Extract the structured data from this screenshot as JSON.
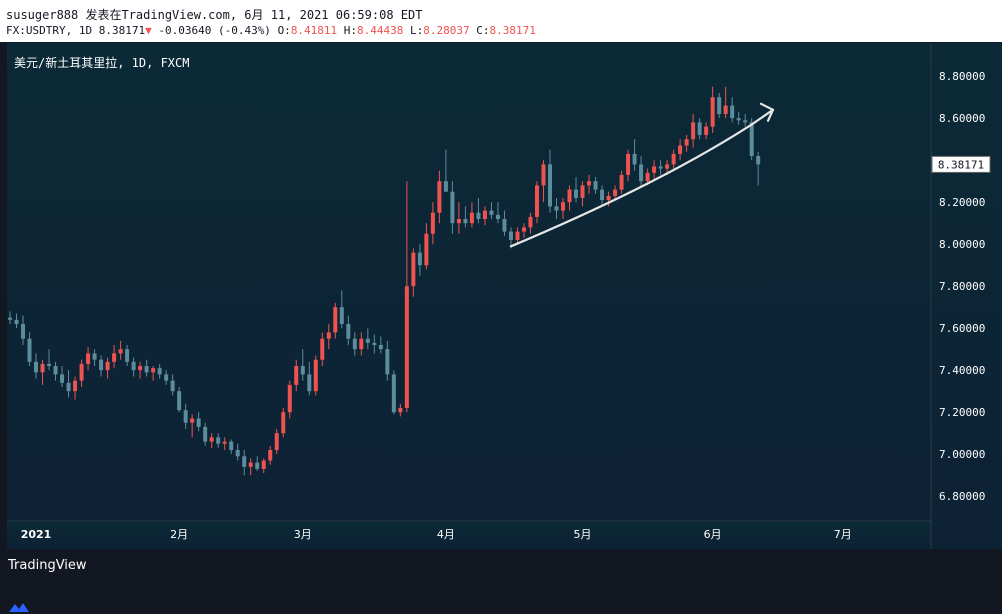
{
  "header": {
    "author_line": "susuger888 发表在TradingView.com, 6月 11, 2021 06:59:08 EDT",
    "symbol": "FX:USDTRY",
    "interval": "1D",
    "last": "8.38171",
    "change_arrow": "▼",
    "change": "-0.03640",
    "change_pct": "(-0.43%)",
    "o_label": "O:",
    "o_value": "8.41811",
    "h_label": "H:",
    "h_value": "8.44438",
    "l_label": "L:",
    "l_value": "8.28037",
    "c_label": "C:",
    "c_value": "8.38171"
  },
  "chart_data": {
    "type": "candlestick",
    "title": "美元/新土耳其里拉, 1D, FXCM",
    "x_tick_labels": [
      "2021",
      "2月",
      "3月",
      "4月",
      "5月",
      "6月",
      "7月"
    ],
    "y_ticks": [
      6.8,
      7.0,
      7.2,
      7.4,
      7.6,
      7.8,
      8.0,
      8.2,
      8.4,
      8.6,
      8.8
    ],
    "ylim": [
      6.72,
      8.92
    ],
    "price_label": "8.38171",
    "annotation": "upward trend arrow drawn under the April–June rise",
    "colors": {
      "background_top": "#0b2936",
      "background_bottom": "#0d2235",
      "up": "#ef5350",
      "down": "#5d8d9c",
      "arrow": "#e6e6e6",
      "axis_text": "#ffffff"
    },
    "candles": [
      [
        7.65,
        7.68,
        7.62,
        7.64
      ],
      [
        7.64,
        7.67,
        7.6,
        7.62
      ],
      [
        7.62,
        7.66,
        7.52,
        7.55
      ],
      [
        7.55,
        7.58,
        7.42,
        7.44
      ],
      [
        7.44,
        7.48,
        7.36,
        7.39
      ],
      [
        7.39,
        7.45,
        7.33,
        7.43
      ],
      [
        7.43,
        7.5,
        7.4,
        7.42
      ],
      [
        7.42,
        7.44,
        7.35,
        7.38
      ],
      [
        7.38,
        7.42,
        7.32,
        7.34
      ],
      [
        7.34,
        7.4,
        7.27,
        7.3
      ],
      [
        7.3,
        7.37,
        7.26,
        7.35
      ],
      [
        7.35,
        7.45,
        7.32,
        7.43
      ],
      [
        7.43,
        7.51,
        7.4,
        7.48
      ],
      [
        7.48,
        7.5,
        7.42,
        7.45
      ],
      [
        7.45,
        7.47,
        7.37,
        7.4
      ],
      [
        7.4,
        7.46,
        7.36,
        7.44
      ],
      [
        7.44,
        7.52,
        7.41,
        7.48
      ],
      [
        7.48,
        7.54,
        7.45,
        7.5
      ],
      [
        7.5,
        7.52,
        7.42,
        7.44
      ],
      [
        7.44,
        7.46,
        7.37,
        7.4
      ],
      [
        7.4,
        7.44,
        7.36,
        7.42
      ],
      [
        7.42,
        7.45,
        7.37,
        7.39
      ],
      [
        7.39,
        7.42,
        7.35,
        7.41
      ],
      [
        7.41,
        7.43,
        7.36,
        7.38
      ],
      [
        7.38,
        7.4,
        7.33,
        7.35
      ],
      [
        7.35,
        7.38,
        7.28,
        7.3
      ],
      [
        7.3,
        7.32,
        7.2,
        7.21
      ],
      [
        7.21,
        7.24,
        7.12,
        7.15
      ],
      [
        7.15,
        7.19,
        7.08,
        7.17
      ],
      [
        7.17,
        7.2,
        7.11,
        7.13
      ],
      [
        7.13,
        7.15,
        7.04,
        7.06
      ],
      [
        7.06,
        7.1,
        7.03,
        7.08
      ],
      [
        7.08,
        7.1,
        7.03,
        7.05
      ],
      [
        7.05,
        7.08,
        7.02,
        7.06
      ],
      [
        7.06,
        7.07,
        7.0,
        7.02
      ],
      [
        7.02,
        7.05,
        6.97,
        6.99
      ],
      [
        6.99,
        7.02,
        6.9,
        6.94
      ],
      [
        6.94,
        6.98,
        6.9,
        6.96
      ],
      [
        6.96,
        6.99,
        6.92,
        6.93
      ],
      [
        6.93,
        6.98,
        6.91,
        6.97
      ],
      [
        6.97,
        7.04,
        6.95,
        7.02
      ],
      [
        7.02,
        7.12,
        7.0,
        7.1
      ],
      [
        7.1,
        7.22,
        7.08,
        7.2
      ],
      [
        7.2,
        7.35,
        7.17,
        7.33
      ],
      [
        7.33,
        7.45,
        7.3,
        7.42
      ],
      [
        7.42,
        7.5,
        7.35,
        7.38
      ],
      [
        7.38,
        7.44,
        7.28,
        7.3
      ],
      [
        7.3,
        7.47,
        7.28,
        7.45
      ],
      [
        7.45,
        7.58,
        7.42,
        7.55
      ],
      [
        7.55,
        7.62,
        7.5,
        7.58
      ],
      [
        7.58,
        7.72,
        7.55,
        7.7
      ],
      [
        7.7,
        7.78,
        7.6,
        7.62
      ],
      [
        7.62,
        7.66,
        7.52,
        7.55
      ],
      [
        7.55,
        7.58,
        7.47,
        7.5
      ],
      [
        7.5,
        7.58,
        7.47,
        7.55
      ],
      [
        7.55,
        7.6,
        7.5,
        7.53
      ],
      [
        7.53,
        7.57,
        7.48,
        7.52
      ],
      [
        7.52,
        7.56,
        7.48,
        7.5
      ],
      [
        7.5,
        7.54,
        7.35,
        7.38
      ],
      [
        7.38,
        7.4,
        7.19,
        7.2
      ],
      [
        7.2,
        7.24,
        7.18,
        7.22
      ],
      [
        7.22,
        8.3,
        7.2,
        7.8
      ],
      [
        7.8,
        7.98,
        7.75,
        7.96
      ],
      [
        7.96,
        8.0,
        7.85,
        7.9
      ],
      [
        7.9,
        8.1,
        7.88,
        8.05
      ],
      [
        8.05,
        8.2,
        8.0,
        8.15
      ],
      [
        8.15,
        8.35,
        8.1,
        8.3
      ],
      [
        8.3,
        8.45,
        8.25,
        8.25
      ],
      [
        8.25,
        8.3,
        8.05,
        8.1
      ],
      [
        8.1,
        8.2,
        8.05,
        8.12
      ],
      [
        8.12,
        8.18,
        8.08,
        8.1
      ],
      [
        8.1,
        8.2,
        8.08,
        8.15
      ],
      [
        8.15,
        8.22,
        8.1,
        8.12
      ],
      [
        8.12,
        8.18,
        8.09,
        8.16
      ],
      [
        8.16,
        8.2,
        8.12,
        8.14
      ],
      [
        8.14,
        8.2,
        8.1,
        8.12
      ],
      [
        8.12,
        8.16,
        8.04,
        8.06
      ],
      [
        8.06,
        8.08,
        7.98,
        8.02
      ],
      [
        8.02,
        8.08,
        8.0,
        8.06
      ],
      [
        8.06,
        8.1,
        8.03,
        8.08
      ],
      [
        8.08,
        8.15,
        8.05,
        8.13
      ],
      [
        8.13,
        8.3,
        8.1,
        8.28
      ],
      [
        8.28,
        8.4,
        8.2,
        8.38
      ],
      [
        8.38,
        8.45,
        8.15,
        8.18
      ],
      [
        8.18,
        8.22,
        8.12,
        8.16
      ],
      [
        8.16,
        8.22,
        8.12,
        8.2
      ],
      [
        8.2,
        8.28,
        8.16,
        8.26
      ],
      [
        8.26,
        8.32,
        8.2,
        8.22
      ],
      [
        8.22,
        8.3,
        8.18,
        8.28
      ],
      [
        8.28,
        8.33,
        8.24,
        8.3
      ],
      [
        8.3,
        8.32,
        8.24,
        8.26
      ],
      [
        8.26,
        8.28,
        8.19,
        8.21
      ],
      [
        8.21,
        8.25,
        8.18,
        8.23
      ],
      [
        8.23,
        8.28,
        8.21,
        8.26
      ],
      [
        8.26,
        8.35,
        8.24,
        8.33
      ],
      [
        8.33,
        8.45,
        8.3,
        8.43
      ],
      [
        8.43,
        8.5,
        8.35,
        8.38
      ],
      [
        8.38,
        8.42,
        8.28,
        8.3
      ],
      [
        8.3,
        8.36,
        8.28,
        8.34
      ],
      [
        8.34,
        8.4,
        8.31,
        8.37
      ],
      [
        8.37,
        8.4,
        8.33,
        8.36
      ],
      [
        8.36,
        8.4,
        8.33,
        8.38
      ],
      [
        8.38,
        8.45,
        8.36,
        8.43
      ],
      [
        8.43,
        8.5,
        8.4,
        8.47
      ],
      [
        8.47,
        8.52,
        8.44,
        8.5
      ],
      [
        8.5,
        8.62,
        8.46,
        8.58
      ],
      [
        8.58,
        8.6,
        8.5,
        8.52
      ],
      [
        8.52,
        8.58,
        8.5,
        8.56
      ],
      [
        8.56,
        8.75,
        8.53,
        8.7
      ],
      [
        8.7,
        8.72,
        8.6,
        8.62
      ],
      [
        8.62,
        8.75,
        8.6,
        8.66
      ],
      [
        8.66,
        8.7,
        8.58,
        8.6
      ],
      [
        8.6,
        8.63,
        8.57,
        8.59
      ],
      [
        8.59,
        8.62,
        8.56,
        8.58
      ],
      [
        8.58,
        8.6,
        8.4,
        8.42
      ],
      [
        8.42,
        8.44,
        8.28,
        8.38
      ]
    ]
  }
}
